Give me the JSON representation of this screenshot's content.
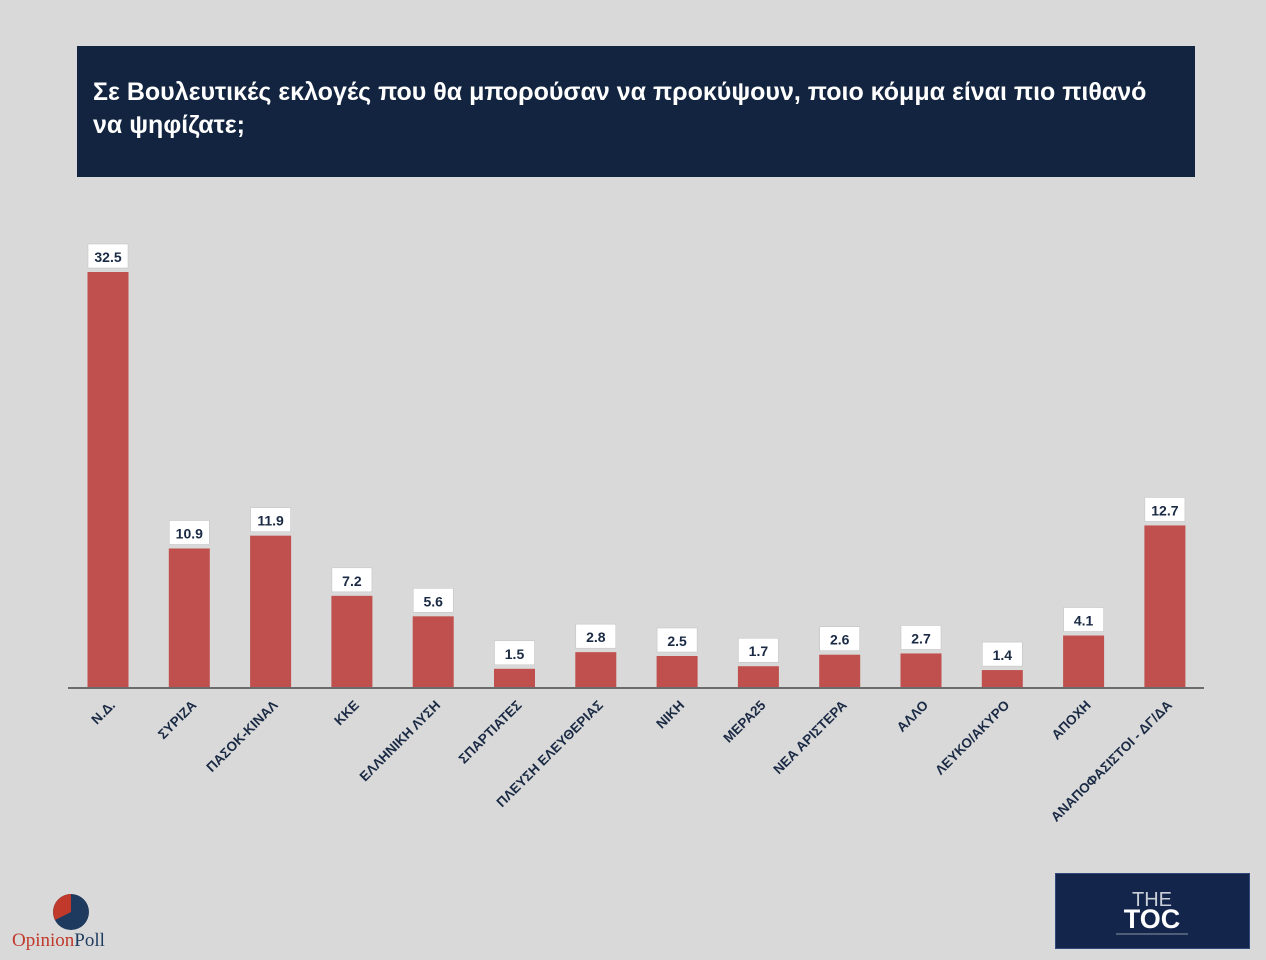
{
  "header": {
    "title": "Σε Βουλευτικές εκλογές που θα μπορούσαν να προκύψουν, ποιο κόμμα είναι πιο πιθανό να ψηφίζατε;"
  },
  "colors": {
    "bar": "#c0504d",
    "title_bg": "#12243f",
    "background": "#d9d9d9"
  },
  "chart_data": {
    "type": "bar",
    "title": "Σε Βουλευτικές εκλογές που θα μπορούσαν να προκύψουν, ποιο κόμμα είναι πιο πιθανό να ψηφίζατε;",
    "categories": [
      "Ν.Δ.",
      "ΣΥΡΙΖΑ",
      "ΠΑΣΟΚ-ΚΙΝΑΛ",
      "ΚΚΕ",
      "ΕΛΛΗΝΙΚΗ ΛΥΣΗ",
      "ΣΠΑΡΤΙΑΤΕΣ",
      "ΠΛΕΥΣΗ ΕΛΕΥΘΕΡΙΑΣ",
      "ΝΙΚΗ",
      "ΜΕΡΑ25",
      "ΝΕΑ ΑΡΙΣΤΕΡΑ",
      "ΑΛΛΟ",
      "ΛΕΥΚΟ/ΑΚΥΡΟ",
      "ΑΠΟΧΗ",
      "ΑΝΑΠΟΦΑΣΙΣΤΟΙ - ΔΓ/ΔΑ"
    ],
    "values": [
      32.5,
      10.9,
      11.9,
      7.2,
      5.6,
      1.5,
      2.8,
      2.5,
      1.7,
      2.6,
      2.7,
      1.4,
      4.1,
      12.7
    ],
    "data_labels": [
      "32.5",
      "10.9",
      "11.9",
      "7.2",
      "5.6",
      "1.5",
      "2.8",
      "2.5",
      "1.7",
      "2.6",
      "2.7",
      "1.4",
      "4.1",
      "12.7"
    ],
    "ylim": [
      0,
      32.5
    ],
    "grid": false,
    "xlabel": "",
    "ylabel": ""
  },
  "logos": {
    "opinion_part1": "Opinion",
    "opinion_part2": "Poll",
    "toc_line1": "THE",
    "toc_line2": "TOC"
  }
}
